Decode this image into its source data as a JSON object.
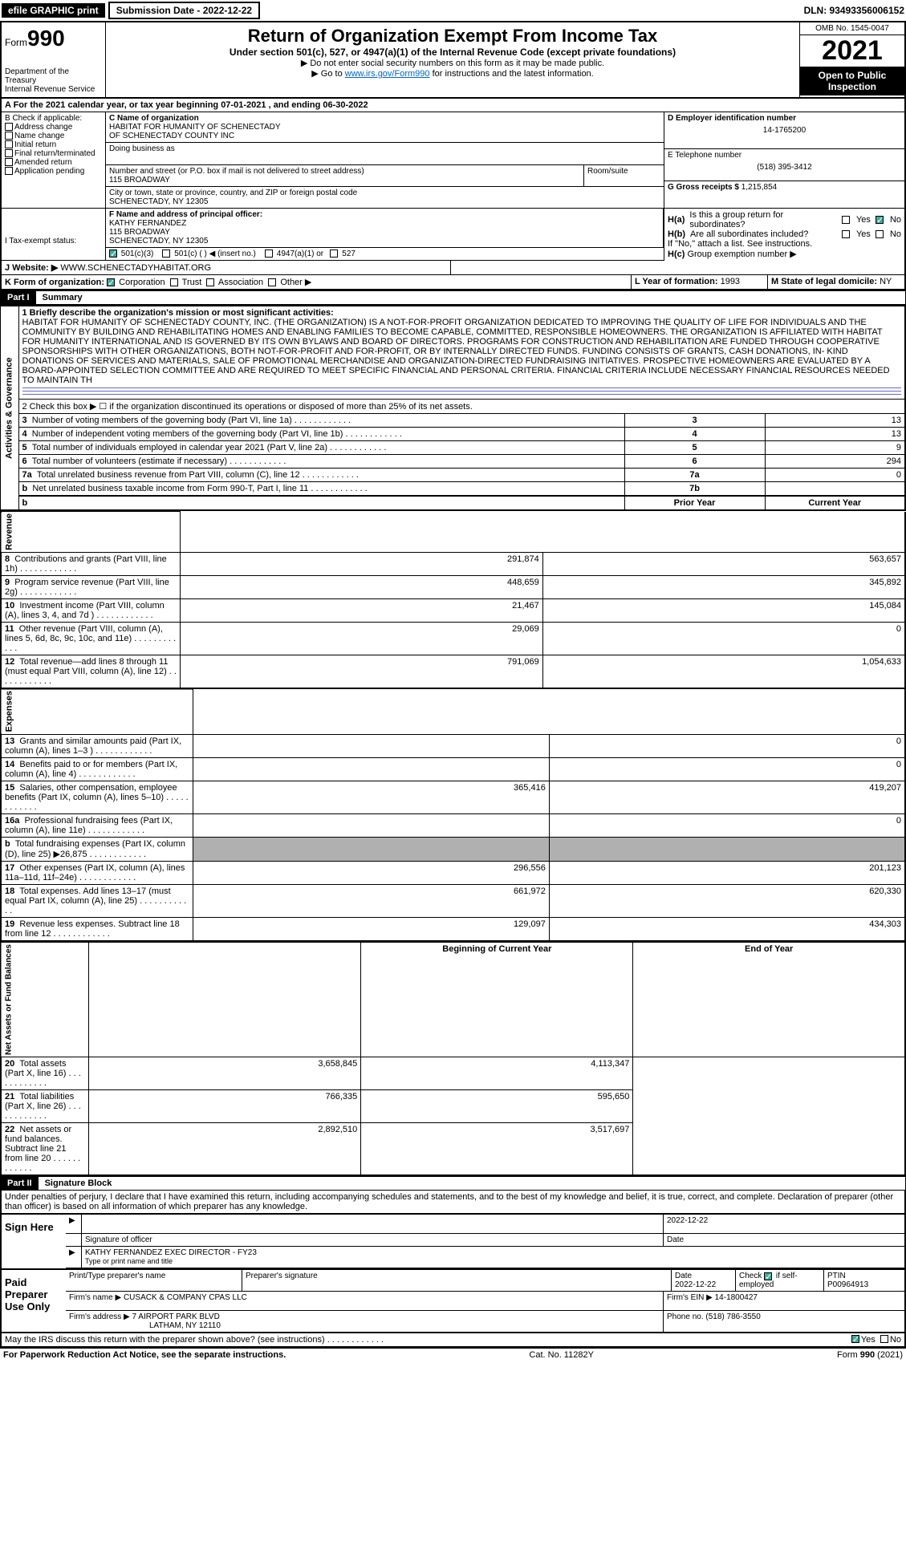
{
  "topbar": {
    "efile": "efile GRAPHIC print",
    "submission_label": "Submission Date - 2022-12-22",
    "dln": "DLN: 93493356006152"
  },
  "header": {
    "form_prefix": "Form",
    "form_num": "990",
    "dept": "Department of the Treasury",
    "irs": "Internal Revenue Service",
    "title": "Return of Organization Exempt From Income Tax",
    "subtitle": "Under section 501(c), 527, or 4947(a)(1) of the Internal Revenue Code (except private foundations)",
    "note1": "▶ Do not enter social security numbers on this form as it may be made public.",
    "note2_pre": "▶ Go to ",
    "note2_link": "www.irs.gov/Form990",
    "note2_post": " for instructions and the latest information.",
    "omb": "OMB No. 1545-0047",
    "year": "2021",
    "open": "Open to Public Inspection"
  },
  "row_a": "A For the 2021 calendar year, or tax year beginning 07-01-2021   , and ending 06-30-2022",
  "box_b": {
    "label": "B Check if applicable:",
    "items": [
      "Address change",
      "Name change",
      "Initial return",
      "Final return/terminated",
      "Amended return",
      "Application pending"
    ]
  },
  "box_c": {
    "name_label": "C Name of organization",
    "name1": "HABITAT FOR HUMANITY OF SCHENECTADY",
    "name2": "OF SCHENECTADY COUNTY INC",
    "dba_label": "Doing business as",
    "addr_label": "Number and street (or P.O. box if mail is not delivered to street address)",
    "addr": "115 BROADWAY",
    "room_label": "Room/suite",
    "city_label": "City or town, state or province, country, and ZIP or foreign postal code",
    "city": "SCHENECTADY, NY  12305"
  },
  "box_d": {
    "label": "D Employer identification number",
    "val": "14-1765200"
  },
  "box_e": {
    "label": "E Telephone number",
    "val": "(518) 395-3412"
  },
  "box_g": {
    "label": "G Gross receipts $",
    "val": "1,215,854"
  },
  "box_f": {
    "label": "F Name and address of principal officer:",
    "l1": "KATHY FERNANDEZ",
    "l2": "115 BROADWAY",
    "l3": "SCHENECTADY, NY  12305"
  },
  "box_h": {
    "a": "Is this a group return for subordinates?",
    "b": "Are all subordinates included?",
    "note": "If \"No,\" attach a list. See instructions.",
    "c": "Group exemption number ▶"
  },
  "row_i": {
    "label": "I   Tax-exempt status:",
    "o1": "501(c)(3)",
    "o2": "501(c) (  ) ◀ (insert no.)",
    "o3": "4947(a)(1) or",
    "o4": "527"
  },
  "row_j": {
    "label": "J   Website: ▶",
    "val": "WWW.SCHENECTADYHABITAT.ORG"
  },
  "row_k": {
    "label": "K Form of organization:",
    "o1": "Corporation",
    "o2": "Trust",
    "o3": "Association",
    "o4": "Other ▶"
  },
  "row_l": {
    "label": "L Year of formation:",
    "val": "1993"
  },
  "row_m": {
    "label": "M State of legal domicile:",
    "val": "NY"
  },
  "part1": {
    "hdr": "Part I",
    "title": "Summary"
  },
  "summary": {
    "l1_label": "1   Briefly describe the organization's mission or most significant activities:",
    "l1_text": "HABITAT FOR HUMANITY OF SCHENECTADY COUNTY, INC. (THE ORGANIZATION) IS A NOT-FOR-PROFIT ORGANIZATION DEDICATED TO IMPROVING THE QUALITY OF LIFE FOR INDIVIDUALS AND THE COMMUNITY BY BUILDING AND REHABILITATING HOMES AND ENABLING FAMILIES TO BECOME CAPABLE, COMMITTED, RESPONSIBLE HOMEOWNERS. THE ORGANIZATION IS AFFILIATED WITH HABITAT FOR HUMANITY INTERNATIONAL AND IS GOVERNED BY ITS OWN BYLAWS AND BOARD OF DIRECTORS. PROGRAMS FOR CONSTRUCTION AND REHABILITATION ARE FUNDED THROUGH COOPERATIVE SPONSORSHIPS WITH OTHER ORGANIZATIONS, BOTH NOT-FOR-PROFIT AND FOR-PROFIT, OR BY INTERNALLY DIRECTED FUNDS. FUNDING CONSISTS OF GRANTS, CASH DONATIONS, IN- KIND DONATIONS OF SERVICES AND MATERIALS, SALE OF PROMOTIONAL MERCHANDISE AND ORGANIZATION-DIRECTED FUNDRAISING INITIATIVES. PROSPECTIVE HOMEOWNERS ARE EVALUATED BY A BOARD-APPOINTED SELECTION COMMITTEE AND ARE REQUIRED TO MEET SPECIFIC FINANCIAL AND PERSONAL CRITERIA. FINANCIAL CRITERIA INCLUDE NECESSARY FINANCIAL RESOURCES NEEDED TO MAINTAIN TH",
    "l2": "2   Check this box ▶ ☐ if the organization discontinued its operations or disposed of more than 25% of its net assets.",
    "rows_ag": [
      {
        "n": "3",
        "t": "Number of voting members of the governing body (Part VI, line 1a)",
        "k": "3",
        "v": "13"
      },
      {
        "n": "4",
        "t": "Number of independent voting members of the governing body (Part VI, line 1b)",
        "k": "4",
        "v": "13"
      },
      {
        "n": "5",
        "t": "Total number of individuals employed in calendar year 2021 (Part V, line 2a)",
        "k": "5",
        "v": "9"
      },
      {
        "n": "6",
        "t": "Total number of volunteers (estimate if necessary)",
        "k": "6",
        "v": "294"
      },
      {
        "n": "7a",
        "t": "Total unrelated business revenue from Part VIII, column (C), line 12",
        "k": "7a",
        "v": "0"
      },
      {
        "n": "b",
        "t": "Net unrelated business taxable income from Form 990-T, Part I, line 11",
        "k": "7b",
        "v": ""
      }
    ],
    "hdr_prior": "Prior Year",
    "hdr_curr": "Current Year",
    "rev": [
      {
        "n": "8",
        "t": "Contributions and grants (Part VIII, line 1h)",
        "p": "291,874",
        "c": "563,657"
      },
      {
        "n": "9",
        "t": "Program service revenue (Part VIII, line 2g)",
        "p": "448,659",
        "c": "345,892"
      },
      {
        "n": "10",
        "t": "Investment income (Part VIII, column (A), lines 3, 4, and 7d )",
        "p": "21,467",
        "c": "145,084"
      },
      {
        "n": "11",
        "t": "Other revenue (Part VIII, column (A), lines 5, 6d, 8c, 9c, 10c, and 11e)",
        "p": "29,069",
        "c": "0"
      },
      {
        "n": "12",
        "t": "Total revenue—add lines 8 through 11 (must equal Part VIII, column (A), line 12)",
        "p": "791,069",
        "c": "1,054,633"
      }
    ],
    "exp": [
      {
        "n": "13",
        "t": "Grants and similar amounts paid (Part IX, column (A), lines 1–3 )",
        "p": "",
        "c": "0"
      },
      {
        "n": "14",
        "t": "Benefits paid to or for members (Part IX, column (A), line 4)",
        "p": "",
        "c": "0"
      },
      {
        "n": "15",
        "t": "Salaries, other compensation, employee benefits (Part IX, column (A), lines 5–10)",
        "p": "365,416",
        "c": "419,207"
      },
      {
        "n": "16a",
        "t": "Professional fundraising fees (Part IX, column (A), line 11e)",
        "p": "",
        "c": "0"
      },
      {
        "n": "b",
        "t": "Total fundraising expenses (Part IX, column (D), line 25) ▶26,875",
        "p": "SHADE",
        "c": "SHADE"
      },
      {
        "n": "17",
        "t": "Other expenses (Part IX, column (A), lines 11a–11d, 11f–24e)",
        "p": "296,556",
        "c": "201,123"
      },
      {
        "n": "18",
        "t": "Total expenses. Add lines 13–17 (must equal Part IX, column (A), line 25)",
        "p": "661,972",
        "c": "620,330"
      },
      {
        "n": "19",
        "t": "Revenue less expenses. Subtract line 18 from line 12",
        "p": "129,097",
        "c": "434,303"
      }
    ],
    "hdr_begin": "Beginning of Current Year",
    "hdr_end": "End of Year",
    "net": [
      {
        "n": "20",
        "t": "Total assets (Part X, line 16)",
        "p": "3,658,845",
        "c": "4,113,347"
      },
      {
        "n": "21",
        "t": "Total liabilities (Part X, line 26)",
        "p": "766,335",
        "c": "595,650"
      },
      {
        "n": "22",
        "t": "Net assets or fund balances. Subtract line 21 from line 20",
        "p": "2,892,510",
        "c": "3,517,697"
      }
    ],
    "side_ag": "Activities & Governance",
    "side_rev": "Revenue",
    "side_exp": "Expenses",
    "side_net": "Net Assets or Fund Balances"
  },
  "part2": {
    "hdr": "Part II",
    "title": "Signature Block"
  },
  "sig_intro": "Under penalties of perjury, I declare that I have examined this return, including accompanying schedules and statements, and to the best of my knowledge and belief, it is true, correct, and complete. Declaration of preparer (other than officer) is based on all information of which preparer has any knowledge.",
  "sign_here": {
    "label": "Sign Here",
    "date": "2022-12-22",
    "sig_label": "Signature of officer",
    "date_label": "Date",
    "name": "KATHY FERNANDEZ EXEC DIRECTOR - FY23",
    "name_label": "Type or print name and title"
  },
  "paid_prep": {
    "label": "Paid Preparer Use Only",
    "h1": "Print/Type preparer's name",
    "h2": "Preparer's signature",
    "h3": "Date",
    "date": "2022-12-22",
    "h4_pre": "Check",
    "h4_post": "if self-employed",
    "h5": "PTIN",
    "ptin": "P00964913",
    "firm_label": "Firm's name    ▶",
    "firm": "CUSACK & COMPANY CPAS LLC",
    "ein_label": "Firm's EIN ▶",
    "ein": "14-1800427",
    "addr_label": "Firm's address ▶",
    "addr1": "7 AIRPORT PARK BLVD",
    "addr2": "LATHAM, NY  12110",
    "phone_label": "Phone no.",
    "phone": "(518) 786-3550"
  },
  "may_irs": "May the IRS discuss this return with the preparer shown above? (see instructions)",
  "footer": {
    "l": "For Paperwork Reduction Act Notice, see the separate instructions.",
    "c": "Cat. No. 11282Y",
    "r": "Form 990 (2021)"
  },
  "yes": "Yes",
  "no": "No",
  "ha": "H(a)",
  "hb": "H(b)",
  "hc": "H(c)"
}
